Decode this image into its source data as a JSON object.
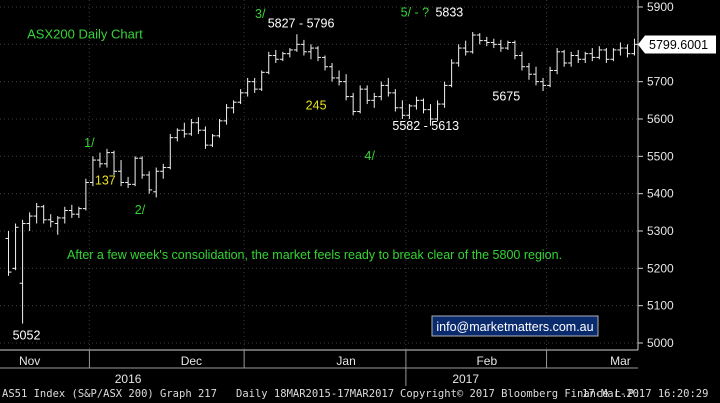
{
  "chart_data": {
    "type": "ohlc",
    "title": "ASX200 Daily Chart",
    "ylim": [
      4980,
      5920
    ],
    "y_ticks": [
      5000,
      5100,
      5200,
      5300,
      5400,
      5500,
      5600,
      5700,
      5800,
      5900
    ],
    "y_tick_labels": [
      "5000",
      "5100",
      "5200",
      "5300",
      "5400",
      "5500",
      "5600",
      "5700",
      "5800",
      "5900"
    ],
    "x_months": [
      {
        "label": "Nov",
        "index": 3
      },
      {
        "label": "Dec",
        "index": 26
      },
      {
        "label": "Jan",
        "index": 48
      },
      {
        "label": "Feb",
        "index": 68
      },
      {
        "label": "Mar",
        "index": 87
      }
    ],
    "x_years": [
      {
        "label": "2016",
        "index": 17
      },
      {
        "label": "2017",
        "index": 65
      }
    ],
    "last_price": "5799.6001",
    "last_value": 5799.6,
    "bars": [
      {
        "o": 5280,
        "h": 5300,
        "l": 5180,
        "c": 5190
      },
      {
        "o": 5200,
        "h": 5320,
        "l": 5195,
        "c": 5310
      },
      {
        "o": 5160,
        "h": 5330,
        "l": 5052,
        "c": 5320
      },
      {
        "o": 5320,
        "h": 5350,
        "l": 5300,
        "c": 5340
      },
      {
        "o": 5340,
        "h": 5375,
        "l": 5320,
        "c": 5365
      },
      {
        "o": 5365,
        "h": 5370,
        "l": 5320,
        "c": 5330
      },
      {
        "o": 5330,
        "h": 5345,
        "l": 5310,
        "c": 5325
      },
      {
        "o": 5320,
        "h": 5340,
        "l": 5290,
        "c": 5335
      },
      {
        "o": 5335,
        "h": 5365,
        "l": 5320,
        "c": 5355
      },
      {
        "o": 5355,
        "h": 5370,
        "l": 5335,
        "c": 5345
      },
      {
        "o": 5345,
        "h": 5365,
        "l": 5335,
        "c": 5360
      },
      {
        "o": 5360,
        "h": 5440,
        "l": 5355,
        "c": 5430
      },
      {
        "o": 5430,
        "h": 5500,
        "l": 5420,
        "c": 5490
      },
      {
        "o": 5490,
        "h": 5510,
        "l": 5470,
        "c": 5480
      },
      {
        "o": 5480,
        "h": 5520,
        "l": 5470,
        "c": 5510
      },
      {
        "o": 5510,
        "h": 5515,
        "l": 5450,
        "c": 5460
      },
      {
        "o": 5460,
        "h": 5490,
        "l": 5420,
        "c": 5430
      },
      {
        "o": 5430,
        "h": 5445,
        "l": 5415,
        "c": 5425
      },
      {
        "o": 5425,
        "h": 5500,
        "l": 5420,
        "c": 5495
      },
      {
        "o": 5495,
        "h": 5500,
        "l": 5440,
        "c": 5450
      },
      {
        "o": 5450,
        "h": 5460,
        "l": 5400,
        "c": 5410
      },
      {
        "o": 5405,
        "h": 5470,
        "l": 5390,
        "c": 5460
      },
      {
        "o": 5460,
        "h": 5480,
        "l": 5440,
        "c": 5470
      },
      {
        "o": 5470,
        "h": 5560,
        "l": 5465,
        "c": 5550
      },
      {
        "o": 5550,
        "h": 5575,
        "l": 5540,
        "c": 5570
      },
      {
        "o": 5570,
        "h": 5590,
        "l": 5550,
        "c": 5560
      },
      {
        "o": 5560,
        "h": 5600,
        "l": 5555,
        "c": 5590
      },
      {
        "o": 5590,
        "h": 5605,
        "l": 5560,
        "c": 5570
      },
      {
        "o": 5570,
        "h": 5580,
        "l": 5520,
        "c": 5530
      },
      {
        "o": 5530,
        "h": 5560,
        "l": 5525,
        "c": 5555
      },
      {
        "o": 5555,
        "h": 5600,
        "l": 5550,
        "c": 5595
      },
      {
        "o": 5595,
        "h": 5640,
        "l": 5585,
        "c": 5630
      },
      {
        "o": 5630,
        "h": 5650,
        "l": 5615,
        "c": 5645
      },
      {
        "o": 5645,
        "h": 5680,
        "l": 5640,
        "c": 5670
      },
      {
        "o": 5670,
        "h": 5710,
        "l": 5660,
        "c": 5700
      },
      {
        "o": 5700,
        "h": 5710,
        "l": 5670,
        "c": 5680
      },
      {
        "o": 5680,
        "h": 5730,
        "l": 5675,
        "c": 5725
      },
      {
        "o": 5725,
        "h": 5780,
        "l": 5720,
        "c": 5770
      },
      {
        "o": 5770,
        "h": 5785,
        "l": 5750,
        "c": 5760
      },
      {
        "o": 5760,
        "h": 5780,
        "l": 5755,
        "c": 5775
      },
      {
        "o": 5775,
        "h": 5790,
        "l": 5765,
        "c": 5785
      },
      {
        "o": 5785,
        "h": 5827,
        "l": 5780,
        "c": 5800
      },
      {
        "o": 5800,
        "h": 5812,
        "l": 5770,
        "c": 5780
      },
      {
        "o": 5780,
        "h": 5800,
        "l": 5760,
        "c": 5790
      },
      {
        "o": 5790,
        "h": 5795,
        "l": 5755,
        "c": 5765
      },
      {
        "o": 5765,
        "h": 5770,
        "l": 5730,
        "c": 5740
      },
      {
        "o": 5740,
        "h": 5750,
        "l": 5700,
        "c": 5710
      },
      {
        "o": 5710,
        "h": 5730,
        "l": 5690,
        "c": 5700
      },
      {
        "o": 5700,
        "h": 5720,
        "l": 5650,
        "c": 5660
      },
      {
        "o": 5660,
        "h": 5670,
        "l": 5610,
        "c": 5620
      },
      {
        "o": 5620,
        "h": 5690,
        "l": 5615,
        "c": 5680
      },
      {
        "o": 5680,
        "h": 5690,
        "l": 5640,
        "c": 5650
      },
      {
        "o": 5650,
        "h": 5670,
        "l": 5630,
        "c": 5660
      },
      {
        "o": 5660,
        "h": 5700,
        "l": 5650,
        "c": 5690
      },
      {
        "o": 5690,
        "h": 5710,
        "l": 5660,
        "c": 5670
      },
      {
        "o": 5670,
        "h": 5680,
        "l": 5620,
        "c": 5630
      },
      {
        "o": 5630,
        "h": 5650,
        "l": 5600,
        "c": 5610
      },
      {
        "o": 5610,
        "h": 5640,
        "l": 5600,
        "c": 5635
      },
      {
        "o": 5635,
        "h": 5660,
        "l": 5625,
        "c": 5650
      },
      {
        "o": 5650,
        "h": 5655,
        "l": 5615,
        "c": 5625
      },
      {
        "o": 5625,
        "h": 5640,
        "l": 5582,
        "c": 5600
      },
      {
        "o": 5600,
        "h": 5650,
        "l": 5595,
        "c": 5640
      },
      {
        "o": 5640,
        "h": 5700,
        "l": 5630,
        "c": 5690
      },
      {
        "o": 5690,
        "h": 5760,
        "l": 5685,
        "c": 5750
      },
      {
        "o": 5750,
        "h": 5800,
        "l": 5740,
        "c": 5790
      },
      {
        "o": 5790,
        "h": 5810,
        "l": 5770,
        "c": 5780
      },
      {
        "o": 5780,
        "h": 5833,
        "l": 5775,
        "c": 5825
      },
      {
        "o": 5825,
        "h": 5830,
        "l": 5800,
        "c": 5810
      },
      {
        "o": 5810,
        "h": 5820,
        "l": 5795,
        "c": 5805
      },
      {
        "o": 5805,
        "h": 5815,
        "l": 5790,
        "c": 5800
      },
      {
        "o": 5800,
        "h": 5812,
        "l": 5780,
        "c": 5790
      },
      {
        "o": 5790,
        "h": 5810,
        "l": 5785,
        "c": 5805
      },
      {
        "o": 5805,
        "h": 5810,
        "l": 5760,
        "c": 5770
      },
      {
        "o": 5770,
        "h": 5780,
        "l": 5730,
        "c": 5740
      },
      {
        "o": 5740,
        "h": 5750,
        "l": 5705,
        "c": 5720
      },
      {
        "o": 5720,
        "h": 5740,
        "l": 5690,
        "c": 5700
      },
      {
        "o": 5700,
        "h": 5710,
        "l": 5675,
        "c": 5690
      },
      {
        "o": 5690,
        "h": 5740,
        "l": 5685,
        "c": 5730
      },
      {
        "o": 5730,
        "h": 5790,
        "l": 5720,
        "c": 5780
      },
      {
        "o": 5780,
        "h": 5785,
        "l": 5740,
        "c": 5750
      },
      {
        "o": 5750,
        "h": 5780,
        "l": 5740,
        "c": 5770
      },
      {
        "o": 5770,
        "h": 5785,
        "l": 5750,
        "c": 5760
      },
      {
        "o": 5760,
        "h": 5780,
        "l": 5750,
        "c": 5775
      },
      {
        "o": 5775,
        "h": 5790,
        "l": 5755,
        "c": 5765
      },
      {
        "o": 5765,
        "h": 5795,
        "l": 5760,
        "c": 5785
      },
      {
        "o": 5785,
        "h": 5790,
        "l": 5750,
        "c": 5760
      },
      {
        "o": 5760,
        "h": 5790,
        "l": 5755,
        "c": 5785
      },
      {
        "o": 5785,
        "h": 5805,
        "l": 5770,
        "c": 5790
      },
      {
        "o": 5790,
        "h": 5800,
        "l": 5765,
        "c": 5775
      },
      {
        "o": 5775,
        "h": 5815,
        "l": 5770,
        "c": 5800
      }
    ],
    "annotations": [
      {
        "text": "ASX200 Daily Chart",
        "color": "#35d435",
        "x": 3.5,
        "y": 5815
      },
      {
        "text": "3/",
        "color": "#35d435",
        "x": 39.5,
        "y": 5870
      },
      {
        "text": "5827 - 5796",
        "color": "#ffffff",
        "x": 41.5,
        "y": 5845
      },
      {
        "text": "5/ - ?",
        "color": "#35d435",
        "x": 62.5,
        "y": 5875
      },
      {
        "text": "5833",
        "color": "#ffffff",
        "x": 68.0,
        "y": 5875
      },
      {
        "text": "1/",
        "color": "#35d435",
        "x": 12.5,
        "y": 5525
      },
      {
        "text": "137",
        "color": "#e8e020",
        "x": 14.2,
        "y": 5425
      },
      {
        "text": "2/",
        "color": "#35d435",
        "x": 20.5,
        "y": 5345
      },
      {
        "text": "245",
        "color": "#e8e020",
        "x": 47.5,
        "y": 5625
      },
      {
        "text": "4/",
        "color": "#35d435",
        "x": 56.8,
        "y": 5490
      },
      {
        "text": "5582 - 5613",
        "color": "#ffffff",
        "x": 61.2,
        "y": 5570
      },
      {
        "text": "5675",
        "color": "#ffffff",
        "x": 77.0,
        "y": 5650
      },
      {
        "text": "5052",
        "color": "#ffffff",
        "x": 1.2,
        "y": 5010
      },
      {
        "text": "After a few week's consolidation, the market feels ready to break clear of the 5800 region.",
        "color": "#35d435",
        "x": 9.8,
        "y": 5225
      }
    ]
  },
  "contact_badge": "info@marketmatters.com.au",
  "footer": {
    "index_info": "AS51 Index (S&P/ASX 200) Graph 217",
    "range": "Daily 18MAR2015-17MAR2017",
    "copyright": "Copyright© 2017 Bloomberg Finance L.P.",
    "timestamp": "17-Mar-2017 16:20:29"
  }
}
